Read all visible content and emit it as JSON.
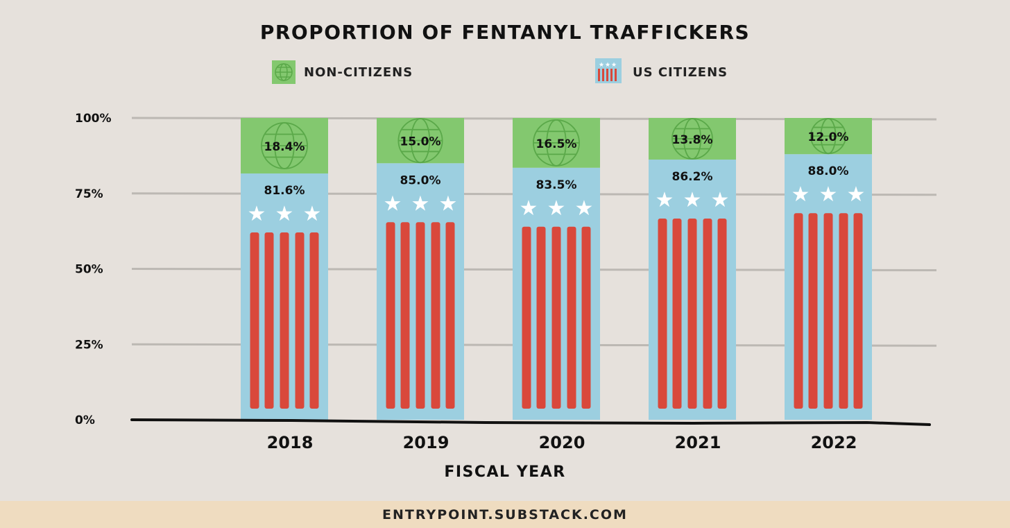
{
  "chart_data": {
    "type": "bar",
    "stacked": true,
    "title": "PROPORTION OF FENTANYL TRAFFICKERS",
    "xlabel": "FISCAL YEAR",
    "ylabel": "",
    "ylim": [
      0,
      100
    ],
    "yticks": [
      "0%",
      "25%",
      "50%",
      "75%",
      "100%"
    ],
    "ytick_values": [
      0,
      25,
      50,
      75,
      100
    ],
    "categories": [
      "2018",
      "2019",
      "2020",
      "2021",
      "2022"
    ],
    "series": [
      {
        "name": "US CITIZENS",
        "values": [
          81.6,
          85.0,
          83.5,
          86.2,
          88.0
        ],
        "labels": [
          "81.6%",
          "85.0%",
          "83.5%",
          "86.2%",
          "88.0%"
        ],
        "color": "#9ccfe0",
        "icon": "flag-icon"
      },
      {
        "name": "NON-CITIZENS",
        "values": [
          18.4,
          15.0,
          16.5,
          13.8,
          12.0
        ],
        "labels": [
          "18.4%",
          "15.0%",
          "16.5%",
          "13.8%",
          "12.0%"
        ],
        "color": "#83c86f",
        "icon": "globe-icon"
      }
    ],
    "legend": "top",
    "grid": true
  },
  "colors": {
    "stripe": "#d9483b",
    "star": "#ffffff",
    "grid": "#bcb8b3",
    "globe": "#5aa849"
  },
  "footer": {
    "source": "ENTRYPOINT.SUBSTACK.COM"
  }
}
